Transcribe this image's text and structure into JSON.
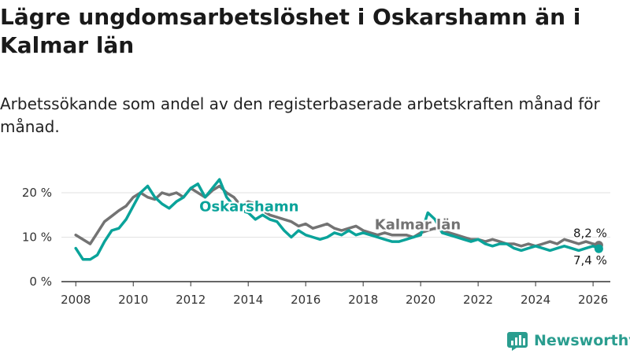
{
  "title": "Lägre ungdomsarbetslöshet i Oskarshamn än i Kalmar län",
  "subtitle": "Arbetssökande som andel av den registerbaserade arbetskraften månad för månad.",
  "brand": "Newsworthy",
  "colors": {
    "oskarshamn": "#0aa39a",
    "kalmar": "#737373",
    "axis": "#333333",
    "grid": "#e2e2e2"
  },
  "chart_data": {
    "type": "line",
    "title": "Lägre ungdomsarbetslöshet i Oskarshamn än i Kalmar län",
    "xlabel": "",
    "ylabel": "",
    "xlim": [
      2007.5,
      2026.6
    ],
    "ylim": [
      0,
      20
    ],
    "x_ticks": [
      2008,
      2010,
      2012,
      2014,
      2016,
      2018,
      2020,
      2022,
      2024,
      2026
    ],
    "x_tick_labels": [
      "2008",
      "2010",
      "2012",
      "2014",
      "2016",
      "2018",
      "2020",
      "2022",
      "2024",
      "2026"
    ],
    "y_ticks": [
      0,
      10,
      20
    ],
    "y_tick_labels": [
      "0 %",
      "10 %",
      "20 %"
    ],
    "grid": "horizontal",
    "series": [
      {
        "name": "Kalmar län",
        "label_text": "Kalmar län",
        "last_value_label": "8,2 %",
        "color": "#737373",
        "x": [
          2008.0,
          2008.5,
          2008.75,
          2009.0,
          2009.3,
          2009.5,
          2009.75,
          2010.0,
          2010.25,
          2010.5,
          2010.75,
          2011.0,
          2011.25,
          2011.5,
          2011.75,
          2012.0,
          2012.25,
          2012.5,
          2012.75,
          2013.0,
          2013.25,
          2013.5,
          2013.75,
          2014.0,
          2014.25,
          2014.5,
          2014.75,
          2015.0,
          2015.25,
          2015.5,
          2015.75,
          2016.0,
          2016.25,
          2016.5,
          2016.75,
          2017.0,
          2017.25,
          2017.5,
          2017.75,
          2018.0,
          2018.25,
          2018.5,
          2018.75,
          2019.0,
          2019.25,
          2019.5,
          2019.75,
          2020.0,
          2020.25,
          2020.5,
          2020.75,
          2021.0,
          2021.25,
          2021.5,
          2021.75,
          2022.0,
          2022.25,
          2022.5,
          2022.75,
          2023.0,
          2023.25,
          2023.5,
          2023.75,
          2024.0,
          2024.25,
          2024.5,
          2024.75,
          2025.0,
          2025.25,
          2025.5,
          2025.75,
          2026.0,
          2026.2
        ],
        "values": [
          10.5,
          8.5,
          11,
          13.5,
          15,
          16,
          17,
          19,
          20,
          19,
          18.5,
          20,
          19.5,
          20,
          19,
          21,
          20,
          19,
          20.5,
          21.5,
          20,
          19,
          17,
          18,
          17.5,
          16,
          15,
          14.5,
          14,
          13.5,
          12.5,
          13,
          12,
          12.5,
          13,
          12,
          11.5,
          12,
          12.5,
          11.5,
          11,
          10.5,
          11,
          10.5,
          10.5,
          10.5,
          10,
          11,
          11.5,
          12,
          11.5,
          11,
          10.5,
          10,
          9.5,
          9.5,
          9,
          9.5,
          9,
          8.5,
          8.5,
          8,
          8.5,
          8,
          8.5,
          9,
          8.5,
          9.5,
          9,
          8.5,
          9,
          8.5,
          8.2
        ]
      },
      {
        "name": "Oskarshamn",
        "label_text": "Oskarshamn",
        "last_value_label": "7,4 %",
        "color": "#0aa39a",
        "x": [
          2008.0,
          2008.25,
          2008.5,
          2008.75,
          2009.0,
          2009.25,
          2009.5,
          2009.75,
          2010.0,
          2010.25,
          2010.5,
          2010.75,
          2011.0,
          2011.25,
          2011.5,
          2011.75,
          2012.0,
          2012.25,
          2012.5,
          2012.75,
          2013.0,
          2013.25,
          2013.5,
          2013.75,
          2014.0,
          2014.25,
          2014.5,
          2014.75,
          2015.0,
          2015.25,
          2015.5,
          2015.75,
          2016.0,
          2016.25,
          2016.5,
          2016.75,
          2017.0,
          2017.25,
          2017.5,
          2017.75,
          2018.0,
          2018.25,
          2018.5,
          2018.75,
          2019.0,
          2019.25,
          2019.5,
          2019.75,
          2020.0,
          2020.25,
          2020.5,
          2020.75,
          2021.0,
          2021.25,
          2021.5,
          2021.75,
          2022.0,
          2022.25,
          2022.5,
          2022.75,
          2023.0,
          2023.25,
          2023.5,
          2023.75,
          2024.0,
          2024.25,
          2024.5,
          2024.75,
          2025.0,
          2025.25,
          2025.5,
          2025.75,
          2026.0,
          2026.2
        ],
        "values": [
          7.5,
          5,
          5,
          6,
          9,
          11.5,
          12,
          14,
          17,
          20,
          21.5,
          19,
          17.5,
          16.5,
          18,
          19,
          21,
          22,
          19,
          21,
          23,
          19,
          17,
          16,
          15.5,
          14,
          15,
          14,
          13.5,
          11.5,
          10,
          11.5,
          10.5,
          10,
          9.5,
          10,
          11,
          10.5,
          11.5,
          10.5,
          11,
          10.5,
          10,
          9.5,
          9,
          9,
          9.5,
          10,
          10.5,
          15.5,
          14,
          11,
          10.5,
          10,
          9.5,
          9,
          9.5,
          8.5,
          8,
          8.5,
          8.5,
          7.5,
          7,
          7.5,
          8,
          7.5,
          7,
          7.5,
          8,
          7.5,
          7,
          7.5,
          8,
          7.4
        ]
      }
    ]
  }
}
